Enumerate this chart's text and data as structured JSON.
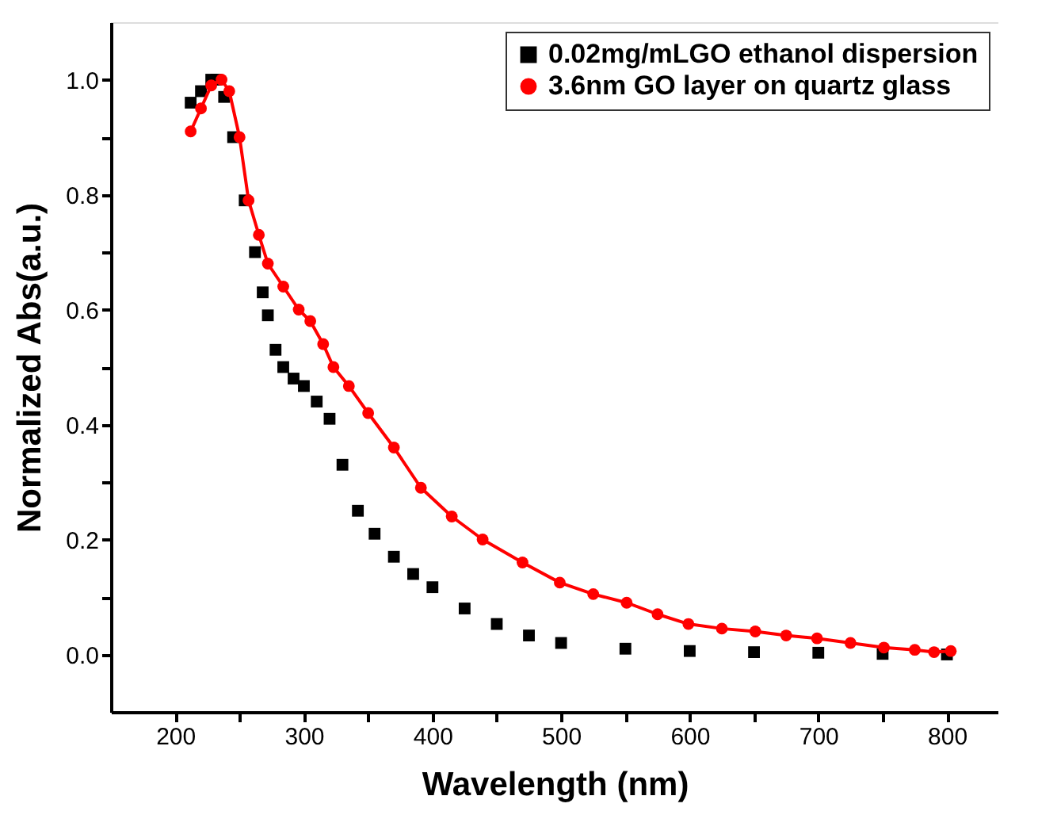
{
  "chart_data": {
    "type": "line",
    "xlabel": "Wavelength (nm)",
    "ylabel": "Normalized Abs(a.u.)",
    "xlim": [
      150,
      840
    ],
    "ylim": [
      -0.1,
      1.1
    ],
    "xticks": [
      200,
      {
        "value": 250,
        "label": null
      },
      300,
      {
        "value": 350,
        "label": null
      },
      400,
      {
        "value": 450,
        "label": null
      },
      500,
      {
        "value": 550,
        "label": null
      },
      600,
      {
        "value": 650,
        "label": null
      },
      700,
      {
        "value": 750,
        "label": null
      },
      800
    ],
    "yticks": [
      {
        "value": 0,
        "label": "0.0"
      },
      {
        "value": 0.1,
        "label": null
      },
      0.2,
      {
        "value": 0.3,
        "label": null
      },
      0.4,
      {
        "value": 0.5,
        "label": null
      },
      0.6,
      {
        "value": 0.7,
        "label": null
      },
      0.8,
      {
        "value": 0.9,
        "label": null
      },
      {
        "value": 1,
        "label": "1.0"
      }
    ],
    "grid": false,
    "legend": "top right",
    "series": [
      {
        "name": "0.02mg/mLGO ethanol dispersion",
        "type": "scatter",
        "marker": "square",
        "color": "#000000",
        "x": [
          212,
          220,
          228,
          232,
          238,
          245,
          254,
          262,
          268,
          272,
          278,
          284,
          292,
          300,
          310,
          320,
          330,
          342,
          355,
          370,
          385,
          400,
          425,
          450,
          475,
          500,
          550,
          600,
          650,
          700,
          750,
          800
        ],
        "values": [
          0.96,
          0.98,
          1.0,
          1.0,
          0.97,
          0.9,
          0.79,
          0.7,
          0.63,
          0.59,
          0.53,
          0.5,
          0.48,
          0.467,
          0.44,
          0.41,
          0.33,
          0.25,
          0.21,
          0.17,
          0.14,
          0.117,
          0.08,
          0.053,
          0.033,
          0.02,
          0.01,
          0.006,
          0.004,
          0.003,
          0.001,
          0.0
        ]
      },
      {
        "name": "3.6nm GO layer on quartz glass",
        "line_style": "solid",
        "marker": "circle",
        "color": "#ff0000",
        "x": [
          212,
          220,
          228,
          236,
          242,
          250,
          257,
          265,
          272,
          284,
          296,
          305,
          315,
          323,
          335,
          350,
          370,
          391,
          415,
          439,
          470,
          499,
          525,
          551,
          575,
          599,
          625,
          651,
          675,
          699,
          725,
          751,
          775,
          790,
          803
        ],
        "values": [
          0.91,
          0.95,
          0.99,
          1.0,
          0.98,
          0.9,
          0.79,
          0.73,
          0.68,
          0.64,
          0.6,
          0.58,
          0.54,
          0.5,
          0.467,
          0.42,
          0.36,
          0.29,
          0.24,
          0.2,
          0.16,
          0.125,
          0.105,
          0.09,
          0.07,
          0.053,
          0.045,
          0.04,
          0.033,
          0.028,
          0.02,
          0.012,
          0.008,
          0.004,
          0.006
        ]
      }
    ]
  }
}
